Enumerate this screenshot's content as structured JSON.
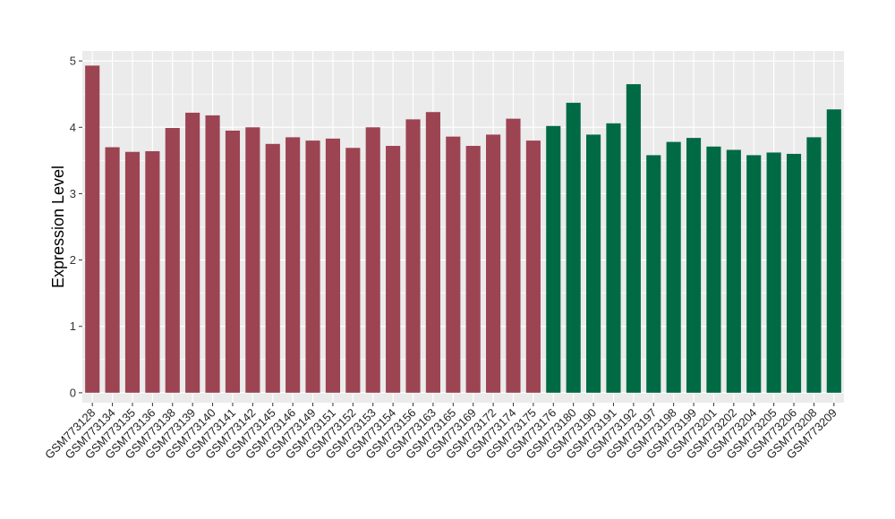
{
  "chart_data": {
    "type": "bar",
    "title": "",
    "xlabel": "",
    "ylabel": "Expression Level",
    "ylim": [
      -0.15,
      5.15
    ],
    "yticks": [
      0,
      1,
      2,
      3,
      4,
      5
    ],
    "grid": true,
    "background": "#ebebeb",
    "grid_color": "#ffffff",
    "categories": [
      "GSM773128",
      "GSM773134",
      "GSM773135",
      "GSM773136",
      "GSM773138",
      "GSM773139",
      "GSM773140",
      "GSM773141",
      "GSM773142",
      "GSM773145",
      "GSM773146",
      "GSM773149",
      "GSM773151",
      "GSM773152",
      "GSM773153",
      "GSM773154",
      "GSM773156",
      "GSM773163",
      "GSM773165",
      "GSM773169",
      "GSM773172",
      "GSM773174",
      "GSM773175",
      "GSM773176",
      "GSM773180",
      "GSM773190",
      "GSM773191",
      "GSM773192",
      "GSM773197",
      "GSM773198",
      "GSM773199",
      "GSM773201",
      "GSM773202",
      "GSM773204",
      "GSM773205",
      "GSM773206",
      "GSM773208",
      "GSM773209"
    ],
    "values": [
      4.93,
      3.7,
      3.63,
      3.64,
      3.99,
      4.22,
      4.18,
      3.95,
      4.0,
      3.75,
      3.85,
      3.8,
      3.83,
      3.69,
      4.0,
      3.72,
      4.12,
      4.23,
      3.86,
      3.72,
      3.89,
      4.13,
      3.8,
      4.02,
      4.37,
      3.89,
      4.06,
      4.65,
      3.58,
      3.78,
      3.84,
      3.71,
      3.66,
      3.58,
      3.62,
      3.6,
      3.85,
      4.27
    ],
    "bar_colors": [
      "#9c4452",
      "#9c4452",
      "#9c4452",
      "#9c4452",
      "#9c4452",
      "#9c4452",
      "#9c4452",
      "#9c4452",
      "#9c4452",
      "#9c4452",
      "#9c4452",
      "#9c4452",
      "#9c4452",
      "#9c4452",
      "#9c4452",
      "#9c4452",
      "#9c4452",
      "#9c4452",
      "#9c4452",
      "#9c4452",
      "#9c4452",
      "#9c4452",
      "#9c4452",
      "#006a45",
      "#006a45",
      "#006a45",
      "#006a45",
      "#006a45",
      "#006a45",
      "#006a45",
      "#006a45",
      "#006a45",
      "#006a45",
      "#006a45",
      "#006a45",
      "#006a45",
      "#006a45",
      "#006a45"
    ]
  }
}
